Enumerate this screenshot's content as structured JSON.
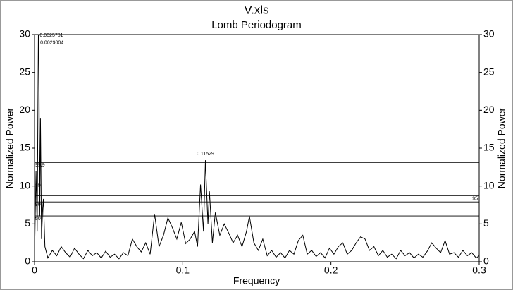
{
  "chart_data": {
    "type": "line",
    "title": "V.xls",
    "subtitle": "Lomb Periodogram",
    "x_label": "Frequency",
    "y_label": "Normalized Power",
    "y2_label": "Normalized Power",
    "xlim": [
      0,
      0.3
    ],
    "xticks": [
      0,
      0.1,
      0.2,
      0.3
    ],
    "ylim": [
      0,
      30
    ],
    "yticks": [
      0,
      5,
      10,
      15,
      20,
      25,
      30
    ],
    "y2lim": [
      0,
      30
    ],
    "y2ticks": [
      0,
      5,
      10,
      15,
      20,
      25,
      30
    ],
    "series": [
      {
        "name": "Power",
        "color": "#000000",
        "x": [
          0,
          0.001,
          0.0018,
          0.0026,
          0.0029,
          0.0035,
          0.004,
          0.0047,
          0.0055,
          0.006,
          0.007,
          0.009,
          0.012,
          0.015,
          0.018,
          0.021,
          0.024,
          0.027,
          0.03,
          0.033,
          0.036,
          0.039,
          0.042,
          0.045,
          0.048,
          0.051,
          0.054,
          0.057,
          0.06,
          0.063,
          0.066,
          0.069,
          0.072,
          0.075,
          0.078,
          0.081,
          0.084,
          0.087,
          0.09,
          0.093,
          0.096,
          0.099,
          0.102,
          0.105,
          0.108,
          0.11,
          0.112,
          0.114,
          0.1153,
          0.117,
          0.118,
          0.12,
          0.122,
          0.125,
          0.128,
          0.131,
          0.134,
          0.137,
          0.14,
          0.143,
          0.145,
          0.148,
          0.151,
          0.154,
          0.157,
          0.16,
          0.163,
          0.166,
          0.169,
          0.172,
          0.175,
          0.178,
          0.181,
          0.184,
          0.187,
          0.19,
          0.193,
          0.196,
          0.199,
          0.202,
          0.205,
          0.208,
          0.211,
          0.214,
          0.217,
          0.22,
          0.223,
          0.226,
          0.229,
          0.232,
          0.235,
          0.238,
          0.241,
          0.244,
          0.247,
          0.25,
          0.253,
          0.256,
          0.259,
          0.262,
          0.265,
          0.268,
          0.271,
          0.274,
          0.277,
          0.28,
          0.283,
          0.286,
          0.289,
          0.292,
          0.295,
          0.298,
          0.3
        ],
        "values": [
          0.5,
          12,
          4,
          30,
          30,
          6,
          19,
          3,
          7,
          8.3,
          2,
          0.5,
          1.5,
          0.8,
          2,
          1.2,
          0.6,
          1.8,
          1,
          0.4,
          1.5,
          0.8,
          1.2,
          0.5,
          1.4,
          0.6,
          1,
          0.4,
          1.2,
          0.8,
          3,
          2,
          1.3,
          2.5,
          1,
          6.3,
          2,
          3.5,
          5.8,
          4.5,
          3,
          5.2,
          2.4,
          3,
          4,
          2,
          10.2,
          4,
          13.4,
          5,
          9.3,
          2.5,
          6.5,
          3.5,
          5,
          3.8,
          2.5,
          3.5,
          2,
          4,
          6,
          2.5,
          1.5,
          3,
          0.8,
          1.5,
          0.6,
          1.2,
          0.5,
          1.5,
          1,
          2.8,
          3.5,
          1,
          1.5,
          0.7,
          1.2,
          0.5,
          1.8,
          1,
          2,
          2.5,
          1,
          1.5,
          2.5,
          3.3,
          3,
          1.5,
          2,
          0.8,
          1.5,
          0.6,
          1,
          0.4,
          1.5,
          0.8,
          1.2,
          0.5,
          1,
          0.6,
          1.4,
          2.5,
          1.8,
          1.2,
          2.8,
          1,
          1.2,
          0.6,
          1.5,
          0.8,
          1.2,
          0.5,
          0.8
        ]
      }
    ],
    "levels": [
      {
        "value": 13.1,
        "label": "99.9",
        "side": "left"
      },
      {
        "value": 10.4,
        "label": "99",
        "side": "left"
      },
      {
        "value": 8.7,
        "label": "95",
        "side": "right"
      },
      {
        "value": 7.9,
        "label": "90",
        "side": "left"
      },
      {
        "value": 6.05,
        "label": "50",
        "side": "left"
      }
    ],
    "annotations": [
      {
        "text": "0.0025781",
        "x": 0.0025781,
        "y": 30
      },
      {
        "text": "0.0029004",
        "x": 0.0029004,
        "y": 29
      },
      {
        "text": "0.11529",
        "x": 0.11529,
        "y": 13.4
      }
    ]
  }
}
